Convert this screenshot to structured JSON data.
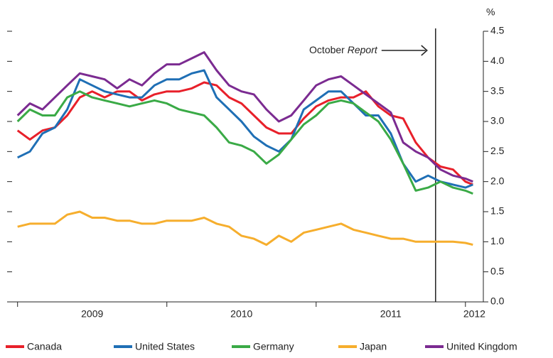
{
  "chart_data": {
    "type": "line",
    "y_unit": "%",
    "annotation": {
      "text": "October ",
      "text_italic": "Report",
      "x": 2011.8
    },
    "x": [
      2009,
      2009.083,
      2009.167,
      2009.25,
      2009.333,
      2009.417,
      2009.5,
      2009.583,
      2009.667,
      2009.75,
      2009.833,
      2009.917,
      2010,
      2010.083,
      2010.167,
      2010.25,
      2010.333,
      2010.417,
      2010.5,
      2010.583,
      2010.667,
      2010.75,
      2010.833,
      2010.917,
      2011,
      2011.083,
      2011.167,
      2011.25,
      2011.333,
      2011.417,
      2011.5,
      2011.583,
      2011.667,
      2011.75,
      2011.833,
      2011.917,
      2012,
      2012.05
    ],
    "series": [
      {
        "name": "Canada",
        "color": "#e8202a",
        "values": [
          2.85,
          2.7,
          2.85,
          2.9,
          3.1,
          3.4,
          3.5,
          3.4,
          3.5,
          3.5,
          3.35,
          3.45,
          3.5,
          3.5,
          3.55,
          3.65,
          3.6,
          3.4,
          3.3,
          3.1,
          2.9,
          2.8,
          2.8,
          3.05,
          3.25,
          3.35,
          3.4,
          3.4,
          3.5,
          3.25,
          3.1,
          3.05,
          2.65,
          2.4,
          2.25,
          2.2,
          2.0,
          1.95
        ]
      },
      {
        "name": "United States",
        "color": "#1f6fb5",
        "values": [
          2.4,
          2.5,
          2.8,
          2.9,
          3.2,
          3.7,
          3.6,
          3.5,
          3.45,
          3.4,
          3.4,
          3.6,
          3.7,
          3.7,
          3.8,
          3.85,
          3.4,
          3.2,
          3.0,
          2.75,
          2.6,
          2.5,
          2.7,
          3.2,
          3.35,
          3.5,
          3.5,
          3.3,
          3.1,
          3.1,
          2.8,
          2.3,
          2.0,
          2.1,
          2.0,
          1.95,
          1.9,
          1.95
        ]
      },
      {
        "name": "Germany",
        "color": "#3aaa46",
        "values": [
          3.0,
          3.2,
          3.1,
          3.1,
          3.4,
          3.5,
          3.4,
          3.35,
          3.3,
          3.25,
          3.3,
          3.35,
          3.3,
          3.2,
          3.15,
          3.1,
          2.9,
          2.65,
          2.6,
          2.5,
          2.3,
          2.45,
          2.7,
          2.95,
          3.1,
          3.3,
          3.35,
          3.3,
          3.15,
          3.0,
          2.7,
          2.3,
          1.85,
          1.9,
          2.0,
          1.9,
          1.85,
          1.8
        ]
      },
      {
        "name": "Japan",
        "color": "#f6ae2d",
        "values": [
          1.25,
          1.3,
          1.3,
          1.3,
          1.45,
          1.5,
          1.4,
          1.4,
          1.35,
          1.35,
          1.3,
          1.3,
          1.35,
          1.35,
          1.35,
          1.4,
          1.3,
          1.25,
          1.1,
          1.05,
          0.95,
          1.1,
          1.0,
          1.15,
          1.2,
          1.25,
          1.3,
          1.2,
          1.15,
          1.1,
          1.05,
          1.05,
          1.0,
          1.0,
          1.0,
          1.0,
          0.98,
          0.95
        ]
      },
      {
        "name": "United Kingdom",
        "color": "#7b2b91",
        "values": [
          3.1,
          3.3,
          3.2,
          3.4,
          3.6,
          3.8,
          3.75,
          3.7,
          3.55,
          3.7,
          3.6,
          3.8,
          3.95,
          3.95,
          4.05,
          4.15,
          3.85,
          3.6,
          3.5,
          3.45,
          3.2,
          3.0,
          3.1,
          3.35,
          3.6,
          3.7,
          3.75,
          3.6,
          3.45,
          3.3,
          3.15,
          2.65,
          2.5,
          2.4,
          2.2,
          2.1,
          2.05,
          2.0
        ]
      }
    ],
    "xlim": [
      2008.93,
      2012.12
    ],
    "xtick_marks": [
      2009,
      2010,
      2011,
      2012
    ],
    "xticks": [
      {
        "value": 2009.5,
        "label": "2009"
      },
      {
        "value": 2010.5,
        "label": "2010"
      },
      {
        "value": 2011.5,
        "label": "2011"
      },
      {
        "value": 2012.06,
        "label": "2012"
      }
    ],
    "ylim": [
      0,
      4.5
    ],
    "yticks": [
      {
        "value": 0,
        "label": "0.0"
      },
      {
        "value": 0.5,
        "label": "0.5"
      },
      {
        "value": 1,
        "label": "1.0"
      },
      {
        "value": 1.5,
        "label": "1.5"
      },
      {
        "value": 2,
        "label": "2.0"
      },
      {
        "value": 2.5,
        "label": "2.5"
      },
      {
        "value": 3,
        "label": "3.0"
      },
      {
        "value": 3.5,
        "label": "3.5"
      },
      {
        "value": 4,
        "label": "4.0"
      },
      {
        "value": 4.5,
        "label": "4.5"
      }
    ],
    "legend": "bottom"
  }
}
